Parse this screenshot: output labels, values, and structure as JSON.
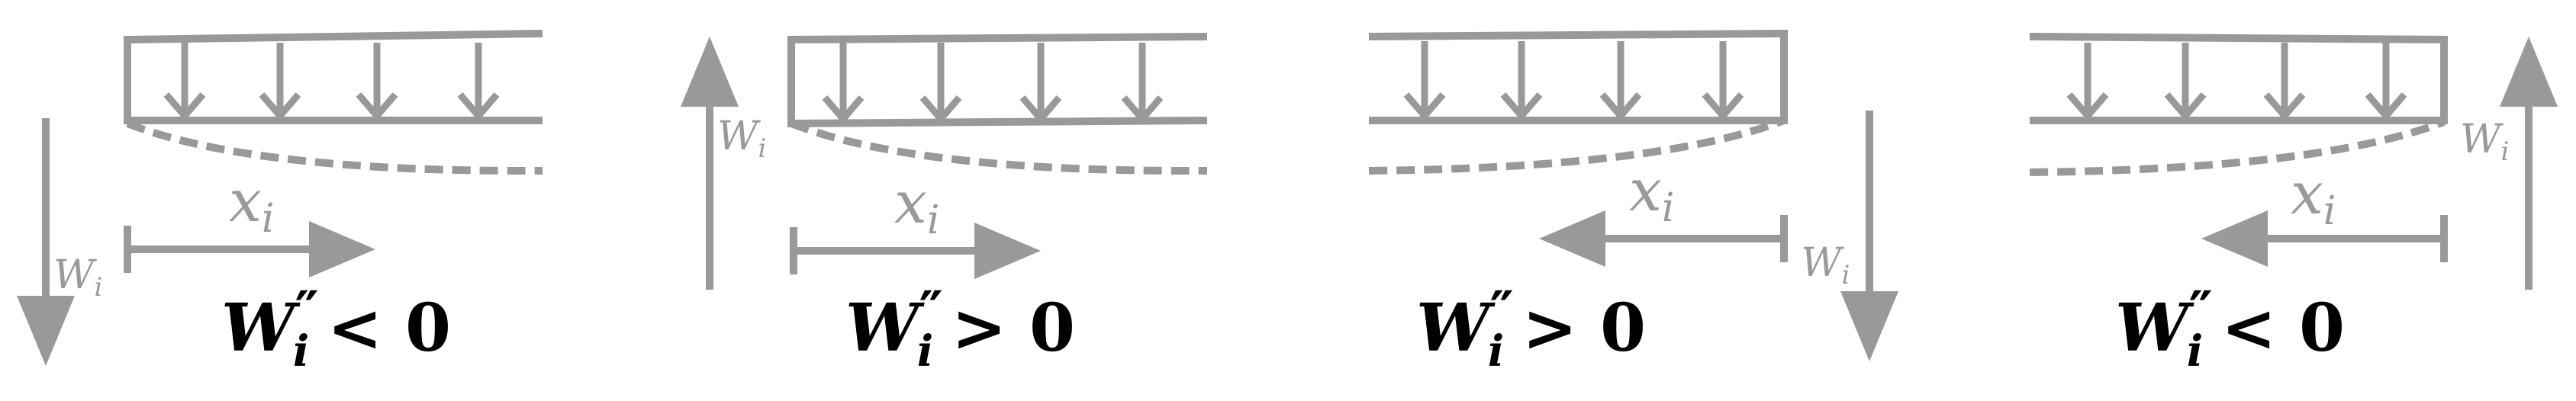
{
  "panels": [
    {
      "wi_label": "W",
      "wi_sub": "i",
      "xi_label": "x",
      "xi_sub": "i",
      "condition_var": "W",
      "condition_prime": "″",
      "condition_sub": "i",
      "condition_rel": "< 0"
    },
    {
      "wi_label": "W",
      "wi_sub": "i",
      "xi_label": "x",
      "xi_sub": "i",
      "condition_var": "W",
      "condition_prime": "″",
      "condition_sub": "i",
      "condition_rel": "> 0"
    },
    {
      "wi_label": "W",
      "wi_sub": "i",
      "xi_label": "x",
      "xi_sub": "i",
      "condition_var": "W",
      "condition_prime": "″",
      "condition_sub": "i",
      "condition_rel": "> 0"
    },
    {
      "wi_label": "W",
      "wi_sub": "i",
      "xi_label": "x",
      "xi_sub": "i",
      "condition_var": "W",
      "condition_prime": "″",
      "condition_sub": "i",
      "condition_rel": "< 0"
    }
  ],
  "colors": {
    "diagram_gray": "#999999",
    "label_gray": "#9a9a9a",
    "condition_text": "#000000",
    "background": "#ffffff"
  }
}
